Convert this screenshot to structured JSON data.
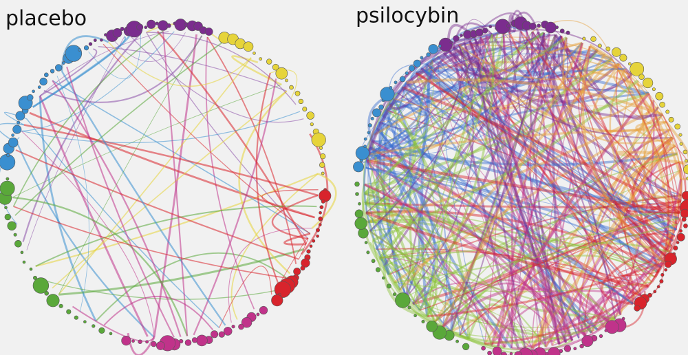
{
  "panels": [
    {
      "title": "placebo"
    },
    {
      "title": "psilocybin"
    }
  ]
}
